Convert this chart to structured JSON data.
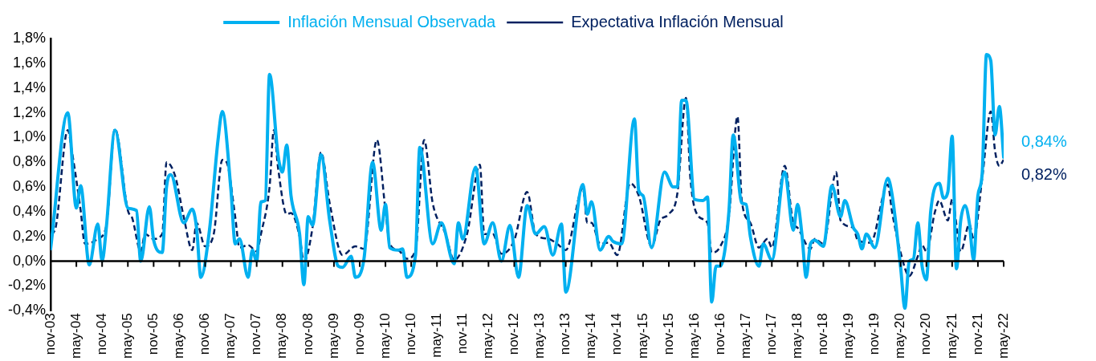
{
  "chart_data": {
    "type": "line",
    "legend": "top",
    "marker": "none",
    "xlim": [
      "2003-11",
      "2022-05"
    ],
    "xticks": [
      {
        "value": "2003-11",
        "label": "nov-03"
      },
      {
        "value": "2004-05",
        "label": "may-04"
      },
      {
        "value": "2004-11",
        "label": "nov-04"
      },
      {
        "value": "2005-05",
        "label": "may-05"
      },
      {
        "value": "2005-11",
        "label": "nov-05"
      },
      {
        "value": "2006-05",
        "label": "may-06"
      },
      {
        "value": "2006-11",
        "label": "nov-06"
      },
      {
        "value": "2007-05",
        "label": "may-07"
      },
      {
        "value": "2007-11",
        "label": "nov-07"
      },
      {
        "value": "2008-05",
        "label": "may-08"
      },
      {
        "value": "2008-11",
        "label": "nov-08"
      },
      {
        "value": "2009-05",
        "label": "may-09"
      },
      {
        "value": "2009-11",
        "label": "nov-09"
      },
      {
        "value": "2010-05",
        "label": "may-10"
      },
      {
        "value": "2010-11",
        "label": "nov-10"
      },
      {
        "value": "2011-05",
        "label": "may-11"
      },
      {
        "value": "2011-11",
        "label": "nov-11"
      },
      {
        "value": "2012-05",
        "label": "may-12"
      },
      {
        "value": "2012-11",
        "label": "nov-12"
      },
      {
        "value": "2013-05",
        "label": "may-13"
      },
      {
        "value": "2013-11",
        "label": "nov-13"
      },
      {
        "value": "2014-05",
        "label": "may-14"
      },
      {
        "value": "2014-11",
        "label": "nov-14"
      },
      {
        "value": "2015-05",
        "label": "may-15"
      },
      {
        "value": "2015-11",
        "label": "nov-15"
      },
      {
        "value": "2016-05",
        "label": "may-16"
      },
      {
        "value": "2016-11",
        "label": "nov-16"
      },
      {
        "value": "2017-05",
        "label": "may-17"
      },
      {
        "value": "2017-11",
        "label": "nov-17"
      },
      {
        "value": "2018-05",
        "label": "may-18"
      },
      {
        "value": "2018-11",
        "label": "nov-18"
      },
      {
        "value": "2019-05",
        "label": "may-19"
      },
      {
        "value": "2019-11",
        "label": "nov-19"
      },
      {
        "value": "2020-05",
        "label": "may-20"
      },
      {
        "value": "2020-11",
        "label": "nov-20"
      },
      {
        "value": "2021-05",
        "label": "may-21"
      },
      {
        "value": "2021-11",
        "label": "nov-21"
      },
      {
        "value": "2022-05",
        "label": "may-22"
      }
    ],
    "ylim": [
      -0.4,
      1.8
    ],
    "yticks": [
      {
        "value": -0.4,
        "label": "-0,4%"
      },
      {
        "value": -0.2,
        "label": "-0,2%"
      },
      {
        "value": 0,
        "label": "0,0%"
      },
      {
        "value": 0.2,
        "label": "0,2%"
      },
      {
        "value": 0.4,
        "label": "0,4%"
      },
      {
        "value": 0.6,
        "label": "0,6%"
      },
      {
        "value": 0.8,
        "label": "0,8%"
      },
      {
        "value": 1.0,
        "label": "1,0%"
      },
      {
        "value": 1.2,
        "label": "1,2%"
      },
      {
        "value": 1.4,
        "label": "1,4%"
      },
      {
        "value": 1.6,
        "label": "1,6%"
      },
      {
        "value": 1.8,
        "label": "1,8%"
      }
    ],
    "annotations": [
      {
        "text": "0,84%",
        "x": "2022-05",
        "y": 0.84
      },
      {
        "text": "0,82%",
        "x": "2022-05",
        "y": 0.82
      }
    ],
    "series": [
      {
        "name": "Inflación Mensual Observada",
        "color": "#00b0f0",
        "line_style": "solid",
        "x": [
          "2003-11",
          "2004-03",
          "2004-05",
          "2004-06",
          "2004-08",
          "2004-10",
          "2004-11",
          "2004-12",
          "2005-02",
          "2005-05",
          "2005-07",
          "2005-08",
          "2005-10",
          "2005-11",
          "2006-01",
          "2006-02",
          "2006-03",
          "2006-06",
          "2006-08",
          "2006-09",
          "2006-10",
          "2006-12",
          "2007-02",
          "2007-03",
          "2007-05",
          "2007-06",
          "2007-07",
          "2007-09",
          "2007-10",
          "2007-11",
          "2007-12",
          "2008-01",
          "2008-02",
          "2008-04",
          "2008-05",
          "2008-06",
          "2008-07",
          "2008-09",
          "2008-10",
          "2008-11",
          "2008-12",
          "2009-02",
          "2009-04",
          "2009-06",
          "2009-07",
          "2009-09",
          "2009-10",
          "2009-12",
          "2010-02",
          "2010-04",
          "2010-05",
          "2010-06",
          "2010-08",
          "2010-09",
          "2010-10",
          "2010-12",
          "2011-01",
          "2011-04",
          "2011-06",
          "2011-09",
          "2011-10",
          "2011-11",
          "2012-02",
          "2012-04",
          "2012-06",
          "2012-08",
          "2012-10",
          "2012-12",
          "2013-02",
          "2013-04",
          "2013-06",
          "2013-08",
          "2013-10",
          "2013-11",
          "2014-03",
          "2014-04",
          "2014-05",
          "2014-07",
          "2014-09",
          "2014-10",
          "2014-12",
          "2015-03",
          "2015-04",
          "2015-05",
          "2015-07",
          "2015-10",
          "2015-12",
          "2016-01",
          "2016-02",
          "2016-03",
          "2016-05",
          "2016-07",
          "2016-08",
          "2016-09",
          "2016-10",
          "2016-11",
          "2017-01",
          "2017-02",
          "2017-04",
          "2017-05",
          "2017-06",
          "2017-08",
          "2017-09",
          "2017-11",
          "2018-02",
          "2018-04",
          "2018-05",
          "2018-06",
          "2018-07",
          "2018-08",
          "2018-09",
          "2018-11",
          "2019-01",
          "2019-03",
          "2019-04",
          "2019-06",
          "2019-07",
          "2019-08",
          "2019-09",
          "2019-11",
          "2020-02",
          "2020-03",
          "2020-05",
          "2020-06",
          "2020-07",
          "2020-08",
          "2020-09",
          "2020-10",
          "2020-11",
          "2020-12",
          "2021-02",
          "2021-03",
          "2021-04",
          "2021-05",
          "2021-06",
          "2021-07",
          "2021-08",
          "2021-09",
          "2021-10",
          "2021-11",
          "2021-12",
          "2022-01",
          "2022-02",
          "2022-03",
          "2022-04",
          "2022-05"
        ],
        "values": [
          0.1,
          1.2,
          0.43,
          0.61,
          -0.03,
          0.3,
          0.0,
          0.28,
          1.06,
          0.43,
          0.41,
          0.0,
          0.44,
          0.17,
          0.07,
          0.6,
          0.7,
          0.31,
          0.42,
          0.27,
          -0.13,
          0.25,
          0.98,
          1.21,
          0.58,
          0.14,
          0.18,
          -0.13,
          0.09,
          0.0,
          0.48,
          0.49,
          1.51,
          0.85,
          0.72,
          0.94,
          0.53,
          0.22,
          -0.19,
          0.36,
          0.29,
          0.86,
          0.33,
          -0.04,
          -0.05,
          0.04,
          -0.13,
          0.02,
          0.8,
          0.25,
          0.46,
          0.11,
          0.09,
          0.1,
          -0.13,
          0.05,
          0.92,
          0.14,
          0.31,
          -0.02,
          0.31,
          0.18,
          0.76,
          0.14,
          0.31,
          0.0,
          0.29,
          -0.13,
          0.45,
          0.22,
          0.28,
          0.05,
          0.3,
          -0.25,
          0.62,
          0.38,
          0.48,
          0.09,
          0.2,
          0.16,
          0.14,
          1.15,
          0.57,
          0.53,
          0.11,
          0.72,
          0.6,
          0.6,
          1.3,
          1.3,
          0.5,
          0.49,
          0.52,
          -0.33,
          -0.04,
          -0.04,
          0.4,
          1.02,
          0.47,
          0.46,
          0.2,
          -0.04,
          0.14,
          0.01,
          0.72,
          0.25,
          0.46,
          0.22,
          -0.13,
          0.14,
          0.17,
          0.12,
          0.61,
          0.36,
          0.49,
          0.27,
          0.22,
          0.1,
          0.22,
          0.11,
          0.67,
          0.54,
          -0.05,
          -0.38,
          0.0,
          0.02,
          0.31,
          -0.04,
          -0.15,
          0.4,
          0.63,
          0.51,
          0.56,
          1.01,
          -0.06,
          0.33,
          0.45,
          0.31,
          0.01,
          0.53,
          0.71,
          1.67,
          1.62,
          1.02,
          1.25,
          0.84
        ]
      },
      {
        "name": "Expectativa Inflación Mensual",
        "color": "#002060",
        "line_style": "dashed",
        "x": [
          "2003-11",
          "2003-12",
          "2004-03",
          "2004-04",
          "2004-06",
          "2004-07",
          "2004-10",
          "2004-12",
          "2005-02",
          "2005-05",
          "2005-06",
          "2005-08",
          "2005-09",
          "2005-11",
          "2006-01",
          "2006-02",
          "2006-04",
          "2006-06",
          "2006-08",
          "2006-09",
          "2006-11",
          "2007-01",
          "2007-03",
          "2007-04",
          "2007-06",
          "2007-07",
          "2007-09",
          "2007-11",
          "2007-12",
          "2008-02",
          "2008-03",
          "2008-04",
          "2008-06",
          "2008-07",
          "2008-09",
          "2008-10",
          "2008-12",
          "2009-02",
          "2009-04",
          "2009-07",
          "2009-10",
          "2009-12",
          "2010-03",
          "2010-05",
          "2010-06",
          "2010-08",
          "2010-10",
          "2010-12",
          "2011-02",
          "2011-04",
          "2011-07",
          "2011-09",
          "2011-12",
          "2012-03",
          "2012-04",
          "2012-06",
          "2012-08",
          "2012-11",
          "2013-02",
          "2013-04",
          "2013-07",
          "2013-09",
          "2013-11",
          "2014-03",
          "2014-04",
          "2014-05",
          "2014-07",
          "2014-09",
          "2014-11",
          "2015-02",
          "2015-04",
          "2015-07",
          "2015-09",
          "2015-11",
          "2016-01",
          "2016-03",
          "2016-04",
          "2016-06",
          "2016-08",
          "2016-09",
          "2016-11",
          "2017-01",
          "2017-03",
          "2017-04",
          "2017-06",
          "2017-08",
          "2017-10",
          "2017-11",
          "2018-02",
          "2018-04",
          "2018-05",
          "2018-08",
          "2018-09",
          "2018-11",
          "2019-02",
          "2019-03",
          "2019-06",
          "2019-07",
          "2019-10",
          "2020-02",
          "2020-03",
          "2020-05",
          "2020-07",
          "2020-09",
          "2020-10",
          "2020-11",
          "2021-01",
          "2021-02",
          "2021-04",
          "2021-05",
          "2021-07",
          "2021-09",
          "2021-10",
          "2021-12",
          "2022-02",
          "2022-03",
          "2022-04",
          "2022-05"
        ],
        "values": [
          0.22,
          0.25,
          1.06,
          0.88,
          0.41,
          0.14,
          0.18,
          0.29,
          1.07,
          0.41,
          0.35,
          0.08,
          0.22,
          0.18,
          0.22,
          0.8,
          0.69,
          0.36,
          0.09,
          0.31,
          0.12,
          0.22,
          0.82,
          0.8,
          0.36,
          0.11,
          0.13,
          0.08,
          0.22,
          0.6,
          1.06,
          0.75,
          0.38,
          0.39,
          0.2,
          0.0,
          0.27,
          0.88,
          0.47,
          0.05,
          0.12,
          0.1,
          0.98,
          0.41,
          0.14,
          0.09,
          0.02,
          0.09,
          0.98,
          0.47,
          0.22,
          0.01,
          0.22,
          0.78,
          0.22,
          0.22,
          0.06,
          0.17,
          0.56,
          0.22,
          0.18,
          0.14,
          0.09,
          0.59,
          0.31,
          0.31,
          0.14,
          0.15,
          0.05,
          0.63,
          0.53,
          0.12,
          0.33,
          0.38,
          0.55,
          1.32,
          0.68,
          0.36,
          0.31,
          0.07,
          0.12,
          0.36,
          1.17,
          0.49,
          0.31,
          0.11,
          0.18,
          0.11,
          0.77,
          0.31,
          0.27,
          0.1,
          0.18,
          0.14,
          0.72,
          0.33,
          0.27,
          0.17,
          0.15,
          0.62,
          0.4,
          0.07,
          -0.12,
          0.04,
          0.13,
          0.08,
          0.4,
          0.49,
          0.33,
          0.5,
          0.08,
          0.3,
          0.18,
          0.67,
          1.21,
          0.89,
          0.77,
          0.82
        ]
      }
    ]
  }
}
